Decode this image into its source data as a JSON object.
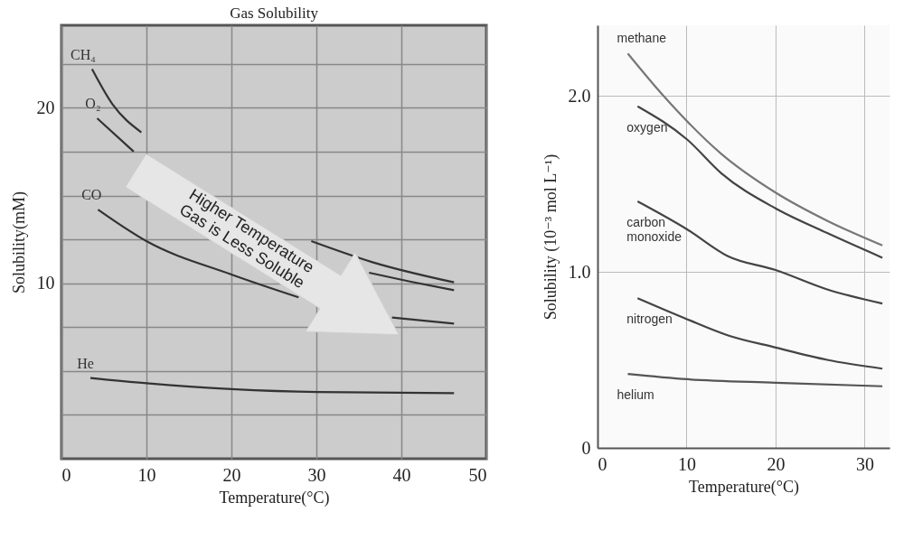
{
  "chart_data": [
    {
      "type": "line",
      "title": "Gas Solubility",
      "xlabel": "Temperature(°C)",
      "ylabel": "Solubility(mM)",
      "xlim": [
        0,
        50
      ],
      "ylim": [
        0,
        24.7
      ],
      "xticks": [
        0,
        10,
        20,
        30,
        40,
        50
      ],
      "yticks": [
        {
          "value": 2.5,
          "label": null
        },
        {
          "value": 5,
          "label": null
        },
        {
          "value": 7.5,
          "label": null
        },
        10,
        {
          "value": 12.5,
          "label": null
        },
        {
          "value": 15,
          "label": null
        },
        {
          "value": 17.5,
          "label": null
        },
        20,
        {
          "value": 22.5,
          "label": null
        }
      ],
      "grid": true,
      "legend": false,
      "annotations": [
        "Higher Temperature",
        "Gas is Less Soluble"
      ],
      "series": [
        {
          "name": "CH₄",
          "color": "#333333",
          "x": [
            3.6,
            6,
            9.4,
            20,
            29.4,
            36.6,
            46.2
          ],
          "values": [
            22.2,
            20.2,
            18.6,
            null,
            12.4,
            11.2,
            10.05
          ]
        },
        {
          "name": "O₂",
          "color": "#333333",
          "x": [
            4.2,
            8.5,
            20,
            36.2,
            41,
            46.2
          ],
          "values": [
            19.4,
            17.5,
            null,
            10.6,
            10.1,
            9.6
          ]
        },
        {
          "name": "CO",
          "color": "#333333",
          "x": [
            4.3,
            10,
            20,
            27.9,
            33,
            38.9,
            46.2
          ],
          "values": [
            14.2,
            12.4,
            10.5,
            9.2,
            null,
            8.05,
            7.7
          ]
        },
        {
          "name": "He",
          "color": "#333333",
          "x": [
            3.4,
            10,
            20,
            30.2,
            46.2
          ],
          "values": [
            4.6,
            4.3,
            3.97,
            3.8,
            3.74
          ]
        }
      ]
    },
    {
      "type": "line",
      "xlabel": "Temperature(°C)",
      "ylabel": "Solubility (10⁻³ mol L⁻¹)",
      "xlim": [
        0,
        32.8
      ],
      "ylim": [
        0,
        2.4
      ],
      "xticks": [
        0,
        10,
        20,
        30
      ],
      "yticks": [
        0,
        {
          "value": 1,
          "label": "1.0"
        },
        {
          "value": 2,
          "label": "2.0"
        }
      ],
      "grid": true,
      "legend": false,
      "series": [
        {
          "name": "methane",
          "color": "#777777",
          "x": [
            3.4,
            7.4,
            13.9,
            20,
            25.8,
            32
          ],
          "values": [
            2.24,
            2.0,
            1.67,
            1.45,
            1.29,
            1.15
          ]
        },
        {
          "name": "oxygen",
          "color": "#444444",
          "x": [
            4.5,
            10.1,
            13.9,
            20,
            25.8,
            32
          ],
          "values": [
            1.94,
            1.75,
            1.56,
            1.36,
            1.22,
            1.08
          ]
        },
        {
          "name": "carbon monoxide",
          "color": "#444444",
          "x": [
            4.5,
            10.1,
            14.6,
            20,
            25.8,
            32
          ],
          "values": [
            1.4,
            1.24,
            1.09,
            1.01,
            0.9,
            0.82
          ]
        },
        {
          "name": "nitrogen",
          "color": "#444444",
          "x": [
            4.5,
            10.1,
            14.6,
            20,
            25.8,
            32
          ],
          "values": [
            0.85,
            0.73,
            0.64,
            0.57,
            0.5,
            0.45
          ]
        },
        {
          "name": "helium",
          "color": "#555555",
          "x": [
            3.4,
            10.1,
            20,
            32
          ],
          "values": [
            0.42,
            0.39,
            0.37,
            0.35
          ]
        }
      ]
    }
  ]
}
